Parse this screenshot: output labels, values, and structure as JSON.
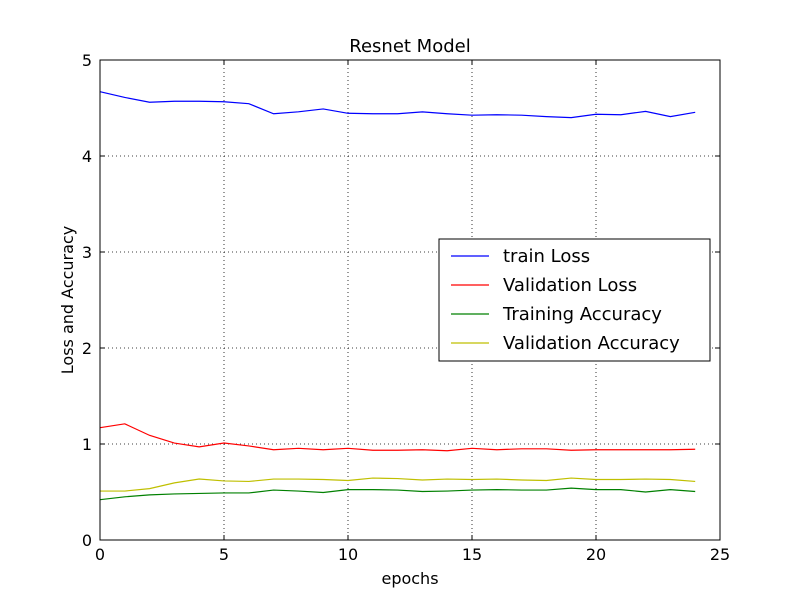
{
  "chart_data": {
    "type": "line",
    "title": "Resnet Model",
    "xlabel": "epochs",
    "ylabel": "Loss and Accuracy",
    "xlim": [
      0,
      25
    ],
    "ylim": [
      0,
      5
    ],
    "xticks": [
      0,
      5,
      10,
      15,
      20,
      25
    ],
    "yticks": [
      0,
      1,
      2,
      3,
      4,
      5
    ],
    "grid": true,
    "legend_position": "center-right",
    "x": [
      0,
      1,
      2,
      3,
      4,
      5,
      6,
      7,
      8,
      9,
      10,
      11,
      12,
      13,
      14,
      15,
      16,
      17,
      18,
      19,
      20,
      21,
      22,
      23,
      24
    ],
    "series": [
      {
        "name": "train Loss",
        "color": "#0000ff",
        "values": [
          4.67,
          4.61,
          4.56,
          4.57,
          4.57,
          4.565,
          4.545,
          4.44,
          4.46,
          4.49,
          4.445,
          4.44,
          4.44,
          4.46,
          4.44,
          4.425,
          4.43,
          4.425,
          4.41,
          4.4,
          4.435,
          4.43,
          4.465,
          4.41,
          4.455
        ]
      },
      {
        "name": "Validation Loss",
        "color": "#ff0000",
        "values": [
          1.17,
          1.21,
          1.09,
          1.01,
          0.97,
          1.01,
          0.98,
          0.94,
          0.955,
          0.94,
          0.955,
          0.935,
          0.935,
          0.94,
          0.93,
          0.955,
          0.94,
          0.95,
          0.95,
          0.935,
          0.94,
          0.94,
          0.94,
          0.94,
          0.945
        ]
      },
      {
        "name": "Training Accuracy",
        "color": "#008000",
        "values": [
          0.42,
          0.45,
          0.47,
          0.48,
          0.485,
          0.49,
          0.49,
          0.52,
          0.51,
          0.495,
          0.525,
          0.525,
          0.52,
          0.505,
          0.51,
          0.52,
          0.525,
          0.52,
          0.52,
          0.54,
          0.525,
          0.525,
          0.5,
          0.525,
          0.505
        ]
      },
      {
        "name": "Validation Accuracy",
        "color": "#bfbf00",
        "values": [
          0.51,
          0.51,
          0.535,
          0.595,
          0.635,
          0.615,
          0.61,
          0.635,
          0.635,
          0.63,
          0.62,
          0.645,
          0.64,
          0.625,
          0.635,
          0.63,
          0.635,
          0.625,
          0.62,
          0.645,
          0.63,
          0.63,
          0.635,
          0.63,
          0.61
        ]
      }
    ]
  }
}
